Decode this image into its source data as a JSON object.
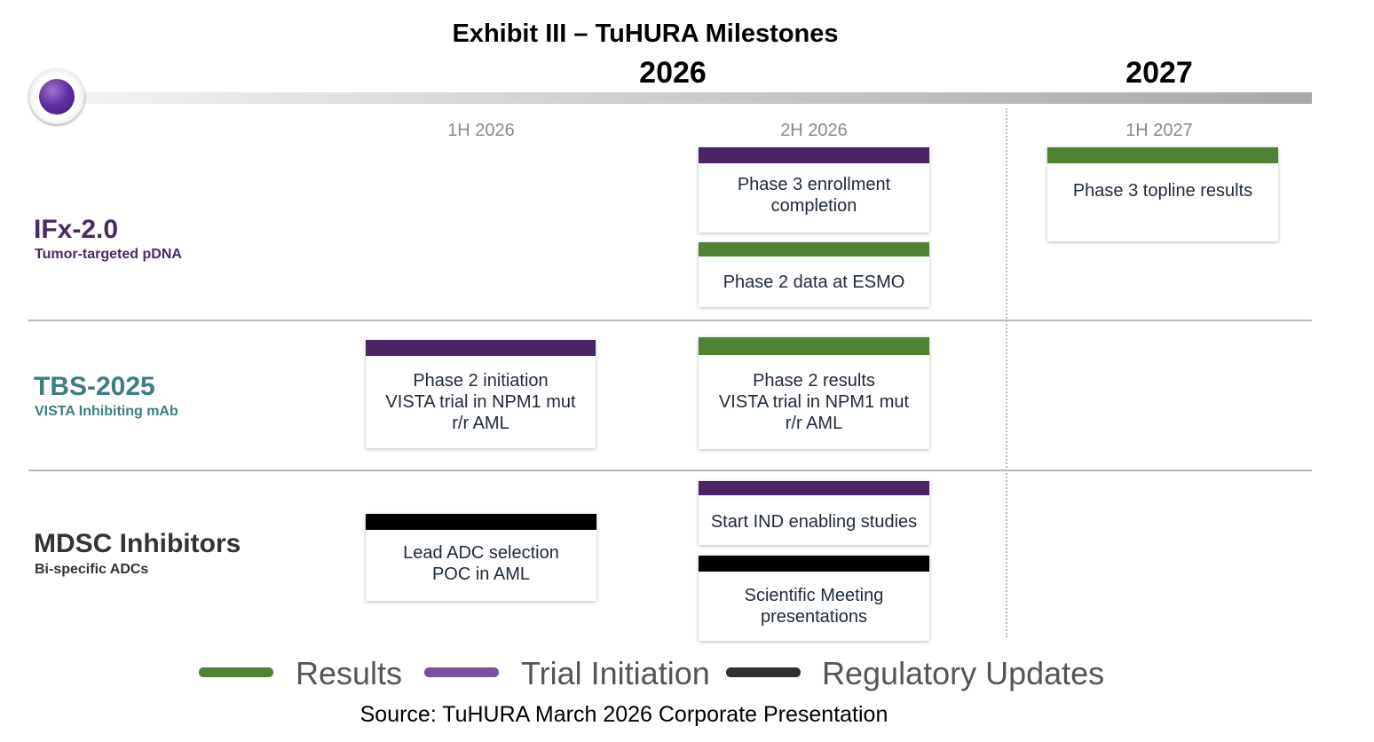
{
  "title": "Exhibit III – TuHURA Milestones",
  "years": [
    "2026",
    "2027"
  ],
  "periods": [
    "1H 2026",
    "2H 2026",
    "1H 2027"
  ],
  "programs": [
    {
      "name": "IFx-2.0",
      "subtitle": "Tumor-targeted pDNA",
      "color": "#4b2a60"
    },
    {
      "name": "TBS-2025",
      "subtitle": "VISTA Inhibiting mAb",
      "color": "#3f7d80"
    },
    {
      "name": "MDSC Inhibitors",
      "subtitle": "Bi-specific ADCs",
      "color": "#333333"
    }
  ],
  "milestones": [
    {
      "program": "IFx-2.0",
      "period": "2H 2026",
      "category": "Trial Initiation",
      "text": "Phase 3 enrollment\ncompletion"
    },
    {
      "program": "IFx-2.0",
      "period": "2H 2026",
      "category": "Results",
      "text": "Phase 2 data at ESMO"
    },
    {
      "program": "IFx-2.0",
      "period": "1H 2027",
      "category": "Results",
      "text": "Phase 3 topline results"
    },
    {
      "program": "TBS-2025",
      "period": "1H 2026",
      "category": "Trial Initiation",
      "text": "Phase 2 initiation\nVISTA trial in NPM1 mut\nr/r AML"
    },
    {
      "program": "TBS-2025",
      "period": "2H 2026",
      "category": "Results",
      "text": "Phase 2 results\nVISTA trial in NPM1 mut\nr/r AML"
    },
    {
      "program": "MDSC Inhibitors",
      "period": "1H 2026",
      "category": "Regulatory Updates",
      "text": "Lead ADC selection\nPOC in AML"
    },
    {
      "program": "MDSC Inhibitors",
      "period": "2H 2026",
      "category": "Trial Initiation",
      "text": "Start IND enabling studies"
    },
    {
      "program": "MDSC Inhibitors",
      "period": "2H 2026",
      "category": "Regulatory Updates",
      "text": "Scientific Meeting\npresentations"
    }
  ],
  "legend": [
    {
      "label": "Results",
      "color": "#4f8233"
    },
    {
      "label": "Trial Initiation",
      "color": "#7a4ea0"
    },
    {
      "label": "Regulatory Updates",
      "color": "#2f2f2f"
    }
  ],
  "source": "Source: TuHURA March 2026 Corporate Presentation"
}
